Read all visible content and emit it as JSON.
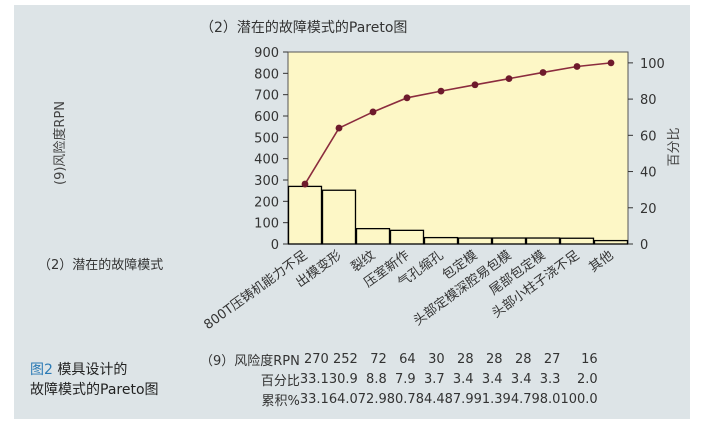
{
  "chart_data": {
    "type": "bar+line (Pareto)",
    "title": "（2）潜在的故障模式的Pareto图",
    "ylabel_left": "(9)风险度RPN",
    "ylabel_right": "百分比",
    "xlabel": "（2）潜在的故障模式",
    "ylim_left": [
      0,
      900
    ],
    "yticks_left": [
      0,
      100,
      200,
      300,
      400,
      500,
      600,
      700,
      800,
      900
    ],
    "ylim_right": [
      0,
      106
    ],
    "yticks_right": [
      0,
      20,
      40,
      60,
      80,
      100
    ],
    "categories": [
      "800T压铸机能力不足",
      "出模变形",
      "裂纹",
      "压室新作",
      "气孔缩孔",
      "包定模",
      "头部定模深腔易包模",
      "尾部包定模",
      "头部小柱子浇不足",
      "其他"
    ],
    "series": [
      {
        "kind": "bar",
        "values": [
          270,
          252,
          72,
          64,
          30,
          28,
          28,
          28,
          27,
          16
        ]
      },
      {
        "kind": "line",
        "values": [
          33.1,
          64.0,
          72.9,
          80.7,
          84.4,
          87.9,
          91.3,
          94.7,
          98.0,
          100.0
        ]
      }
    ],
    "colors": {
      "plot_bg": "#fdf7c6",
      "bar_fill": "#fdf7c6",
      "bar_stroke": "#000000",
      "line": "#8b2c3e",
      "marker": "#6e1a2c",
      "panel_bg": "#dde4e7"
    }
  },
  "table": {
    "row_labels": [
      "（9）风险度RPN",
      "百分比",
      "累积%"
    ],
    "rpn": [
      "270",
      "252",
      "72",
      "64",
      "30",
      "28",
      "28",
      "28",
      "27",
      "16"
    ],
    "percent": [
      "33.1",
      "30.9",
      "8.8",
      "7.9",
      "3.7",
      "3.4",
      "3.4",
      "3.4",
      "3.3",
      "2.0"
    ],
    "cumulative": [
      "33.1",
      "64.0",
      "72.9",
      "80.7",
      "84.4",
      "87.9",
      "91.3",
      "94.7",
      "98.0",
      "100.0"
    ]
  },
  "caption": {
    "fig_label": "图2",
    "line1": "模具设计的",
    "line2": "故障模式的Pareto图"
  }
}
